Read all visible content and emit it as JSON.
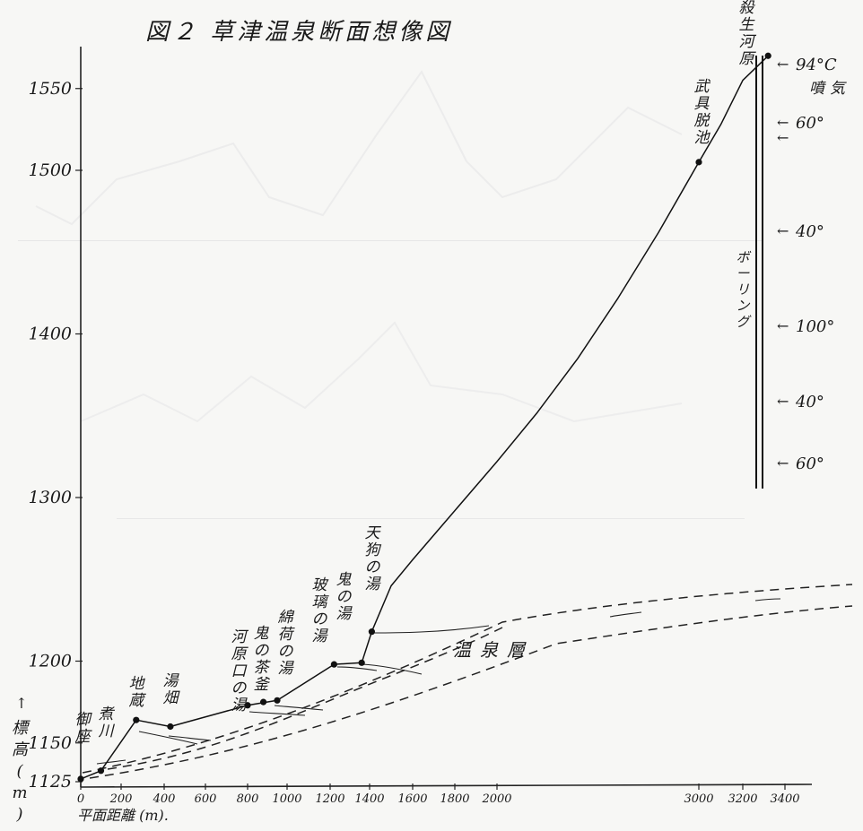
{
  "chart_data": {
    "type": "line",
    "title": "図２ 草津温泉断面想像図",
    "xlabel": "平面距離 (m).",
    "ylabel": "標高(m)",
    "xlim": [
      0,
      3500
    ],
    "ylim": [
      1125,
      1580
    ],
    "x_ticks": [
      0,
      200,
      400,
      600,
      800,
      1000,
      1200,
      1400,
      1600,
      1800,
      2000,
      3000,
      3200,
      3400
    ],
    "x_tick_labels": [
      "0",
      "200",
      "400",
      "600",
      "800",
      "1000",
      "1200",
      "1400",
      "1600",
      "1800",
      "2000",
      "3000",
      "3200",
      "3400"
    ],
    "y_ticks": [
      1125,
      1150,
      1200,
      1300,
      1400,
      1500,
      1550
    ],
    "y_tick_labels": [
      "1125",
      "1150",
      "1200",
      "1300",
      "1400",
      "1500",
      "1550"
    ],
    "series": [
      {
        "x": [
          0,
          100,
          270,
          430,
          800,
          950,
          1220,
          1360,
          1410,
          1500,
          1600,
          1800,
          2000,
          2200,
          2400,
          2600,
          2800,
          3000,
          3100,
          3200,
          3320
        ],
        "y": [
          1128,
          1133,
          1164,
          1160,
          1173,
          1176,
          1198,
          1199,
          1218,
          1246,
          1262,
          1292,
          1322,
          1352,
          1385,
          1422,
          1462,
          1505,
          1528,
          1555,
          1570
        ]
      }
    ],
    "points": [
      {
        "label": "御座",
        "x": 0,
        "y": 1128
      },
      {
        "label": "煮川",
        "x": 100,
        "y": 1133
      },
      {
        "label": "地蔵",
        "x": 270,
        "y": 1164
      },
      {
        "label": "湯畑",
        "x": 430,
        "y": 1160
      },
      {
        "label": "河原口の湯",
        "x": 800,
        "y": 1173
      },
      {
        "label": "鬼の茶釜",
        "x": 880,
        "y": 1175
      },
      {
        "label": "綿荷の湯",
        "x": 950,
        "y": 1176
      },
      {
        "label": "玻璃の湯",
        "x": 1220,
        "y": 1198
      },
      {
        "label": "鬼の湯",
        "x": 1360,
        "y": 1199
      },
      {
        "label": "天狗の湯",
        "x": 1410,
        "y": 1218
      },
      {
        "label": "武具脱池",
        "x": 3000,
        "y": 1505
      },
      {
        "label": "殺生河原",
        "x": 3320,
        "y": 1570
      }
    ],
    "boring": {
      "label": "ボーリング",
      "readings": [
        "94°C 噴気",
        "60°",
        "40°",
        "100°",
        "40°",
        "60°"
      ]
    },
    "annotations": [
      "温泉層"
    ]
  }
}
